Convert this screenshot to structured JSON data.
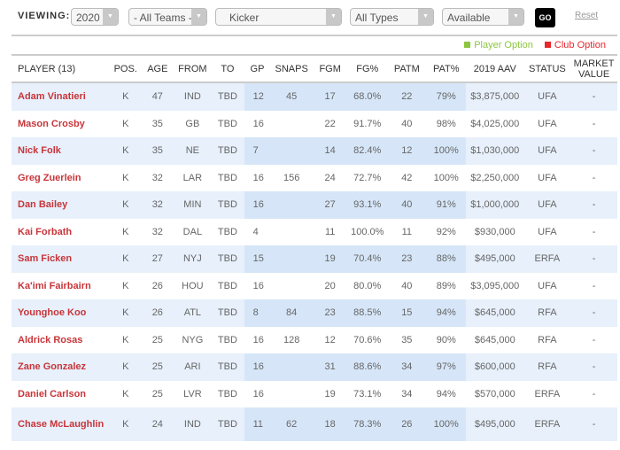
{
  "filters": {
    "label": "VIEWING:",
    "year": "2020",
    "team": "- All Teams -",
    "position": "Kicker",
    "type": "All Types",
    "availability": "Available",
    "go": "GO",
    "reset": "Reset"
  },
  "legend": {
    "player_option": "Player Option",
    "player_option_color": "#8cc63f",
    "club_option": "Club Option",
    "club_option_color": "#e8282b"
  },
  "columns": [
    "PLAYER (13)",
    "POS.",
    "AGE",
    "FROM",
    "TO",
    "GP",
    "SNAPS",
    "FGM",
    "FG%",
    "PATM",
    "PAT%",
    "2019 AAV",
    "STATUS",
    "MARKET VALUE"
  ],
  "rows": [
    [
      "Adam Vinatieri",
      "K",
      "47",
      "IND",
      "TBD",
      "12",
      "45",
      "17",
      "68.0%",
      "22",
      "79%",
      "$3,875,000",
      "UFA",
      "-"
    ],
    [
      "Mason Crosby",
      "K",
      "35",
      "GB",
      "TBD",
      "16",
      "",
      "22",
      "91.7%",
      "40",
      "98%",
      "$4,025,000",
      "UFA",
      "-"
    ],
    [
      "Nick Folk",
      "K",
      "35",
      "NE",
      "TBD",
      "7",
      "",
      "14",
      "82.4%",
      "12",
      "100%",
      "$1,030,000",
      "UFA",
      "-"
    ],
    [
      "Greg Zuerlein",
      "K",
      "32",
      "LAR",
      "TBD",
      "16",
      "156",
      "24",
      "72.7%",
      "42",
      "100%",
      "$2,250,000",
      "UFA",
      "-"
    ],
    [
      "Dan Bailey",
      "K",
      "32",
      "MIN",
      "TBD",
      "16",
      "",
      "27",
      "93.1%",
      "40",
      "91%",
      "$1,000,000",
      "UFA",
      "-"
    ],
    [
      "Kai Forbath",
      "K",
      "32",
      "DAL",
      "TBD",
      "4",
      "",
      "11",
      "100.0%",
      "11",
      "92%",
      "$930,000",
      "UFA",
      "-"
    ],
    [
      "Sam Ficken",
      "K",
      "27",
      "NYJ",
      "TBD",
      "15",
      "",
      "19",
      "70.4%",
      "23",
      "88%",
      "$495,000",
      "ERFA",
      "-"
    ],
    [
      "Ka'imi Fairbairn",
      "K",
      "26",
      "HOU",
      "TBD",
      "16",
      "",
      "20",
      "80.0%",
      "40",
      "89%",
      "$3,095,000",
      "UFA",
      "-"
    ],
    [
      "Younghoe Koo",
      "K",
      "26",
      "ATL",
      "TBD",
      "8",
      "84",
      "23",
      "88.5%",
      "15",
      "94%",
      "$645,000",
      "RFA",
      "-"
    ],
    [
      "Aldrick Rosas",
      "K",
      "25",
      "NYG",
      "TBD",
      "16",
      "128",
      "12",
      "70.6%",
      "35",
      "90%",
      "$645,000",
      "RFA",
      "-"
    ],
    [
      "Zane Gonzalez",
      "K",
      "25",
      "ARI",
      "TBD",
      "16",
      "",
      "31",
      "88.6%",
      "34",
      "97%",
      "$600,000",
      "RFA",
      "-"
    ],
    [
      "Daniel Carlson",
      "K",
      "25",
      "LVR",
      "TBD",
      "16",
      "",
      "19",
      "73.1%",
      "34",
      "94%",
      "$570,000",
      "ERFA",
      "-"
    ],
    [
      "Chase McLaughlin",
      "K",
      "24",
      "IND",
      "TBD",
      "11",
      "62",
      "18",
      "78.3%",
      "26",
      "100%",
      "$495,000",
      "ERFA",
      "-"
    ]
  ]
}
